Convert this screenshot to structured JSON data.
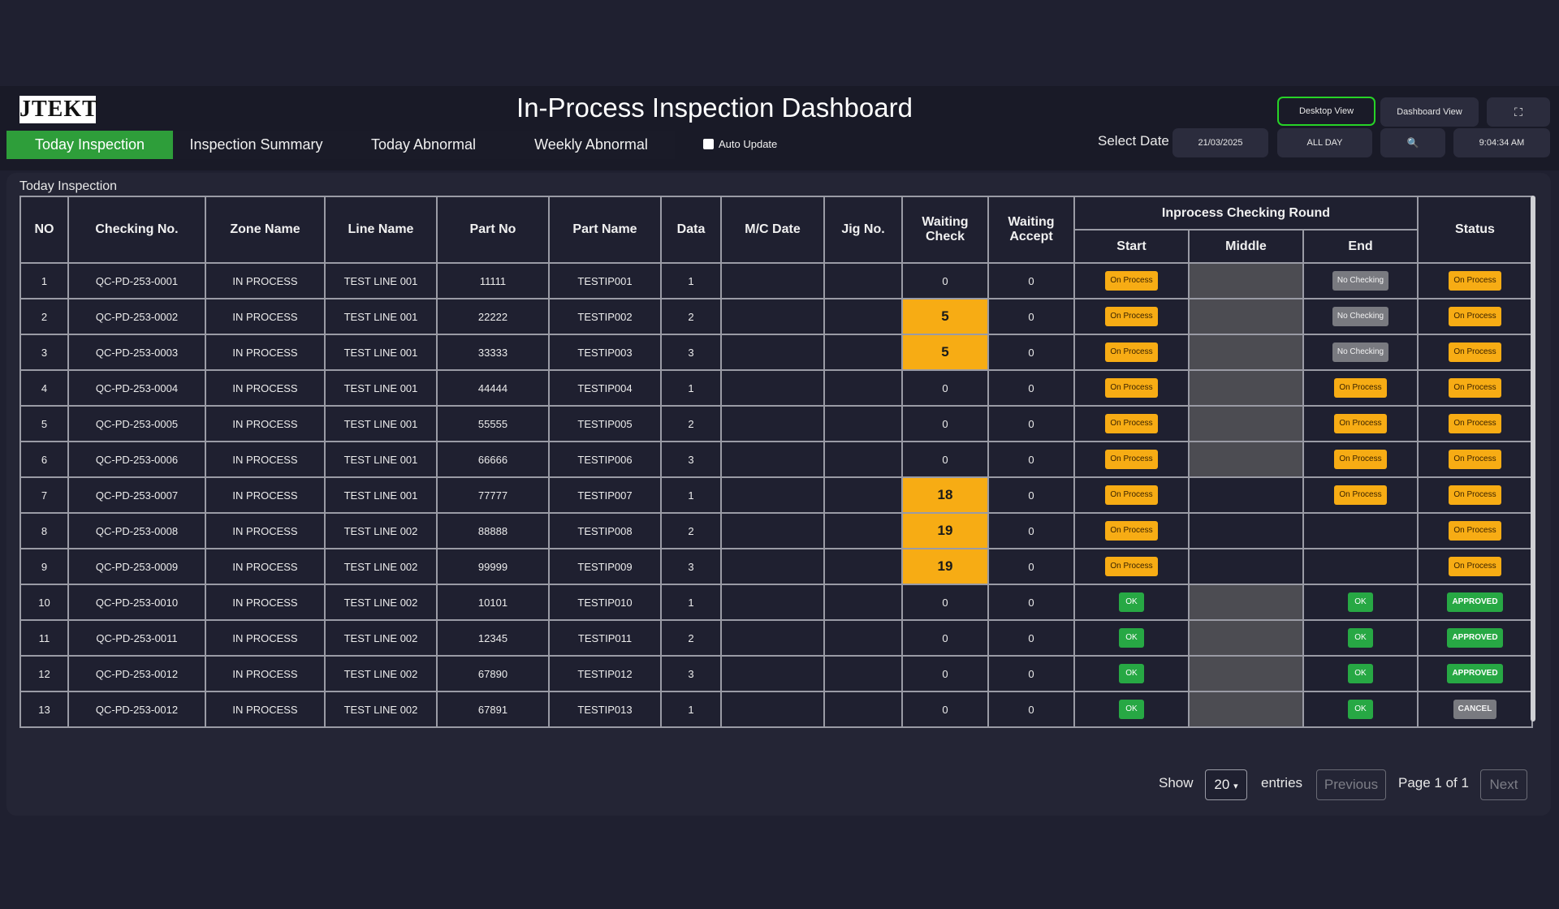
{
  "header": {
    "logo_text": "JTEKT",
    "title": "In-Process Inspection Dashboard",
    "desktop_view_label": "Desktop View",
    "dashboard_view_label": "Dashboard View",
    "fullscreen_icon": "⛶",
    "select_date_label": "Select Date",
    "date_value": "21/03/2025",
    "period_value": "ALL DAY",
    "search_icon": "🔍",
    "time_value": "9:04:34 AM",
    "auto_update_label": "Auto Update"
  },
  "tabs": [
    {
      "label": "Today Inspection"
    },
    {
      "label": "Inspection Summary"
    },
    {
      "label": "Today Abnormal"
    },
    {
      "label": "Weekly Abnormal"
    }
  ],
  "panel": {
    "title": "Today Inspection"
  },
  "table": {
    "headers": {
      "no": "NO",
      "checking_no": "Checking No.",
      "zone_name": "Zone Name",
      "line_name": "Line Name",
      "part_no": "Part No",
      "part_name": "Part Name",
      "data": "Data",
      "mc_date": "M/C Date",
      "jig_no": "Jig No.",
      "waiting_check": "Waiting Check",
      "waiting_accept": "Waiting Accept",
      "round_group": "Inprocess Checking Round",
      "start": "Start",
      "middle": "Middle",
      "end": "End",
      "status": "Status"
    },
    "rows": [
      {
        "no": "1",
        "checking_no": "QC-PD-253-0001",
        "zone": "IN PROCESS",
        "line": "TEST LINE 001",
        "part_no": "11111",
        "part_name": "TESTIP001",
        "data": "1",
        "wait_check": "0",
        "wait_accept": "0",
        "start": "On Process",
        "end": "No Checking",
        "status": "On Process"
      },
      {
        "no": "2",
        "checking_no": "QC-PD-253-0002",
        "zone": "IN PROCESS",
        "line": "TEST LINE 001",
        "part_no": "22222",
        "part_name": "TESTIP002",
        "data": "2",
        "wait_check": "5",
        "wait_accept": "0",
        "start": "On Process",
        "end": "No Checking",
        "status": "On Process"
      },
      {
        "no": "3",
        "checking_no": "QC-PD-253-0003",
        "zone": "IN PROCESS",
        "line": "TEST LINE 001",
        "part_no": "33333",
        "part_name": "TESTIP003",
        "data": "3",
        "wait_check": "5",
        "wait_accept": "0",
        "start": "On Process",
        "end": "No Checking",
        "status": "On Process"
      },
      {
        "no": "4",
        "checking_no": "QC-PD-253-0004",
        "zone": "IN PROCESS",
        "line": "TEST LINE 001",
        "part_no": "44444",
        "part_name": "TESTIP004",
        "data": "1",
        "wait_check": "0",
        "wait_accept": "0",
        "start": "On Process",
        "end": "On Process",
        "status": "On Process"
      },
      {
        "no": "5",
        "checking_no": "QC-PD-253-0005",
        "zone": "IN PROCESS",
        "line": "TEST LINE 001",
        "part_no": "55555",
        "part_name": "TESTIP005",
        "data": "2",
        "wait_check": "0",
        "wait_accept": "0",
        "start": "On Process",
        "end": "On Process",
        "status": "On Process"
      },
      {
        "no": "6",
        "checking_no": "QC-PD-253-0006",
        "zone": "IN PROCESS",
        "line": "TEST LINE 001",
        "part_no": "66666",
        "part_name": "TESTIP006",
        "data": "3",
        "wait_check": "0",
        "wait_accept": "0",
        "start": "On Process",
        "end": "On Process",
        "status": "On Process"
      },
      {
        "no": "7",
        "checking_no": "QC-PD-253-0007",
        "zone": "IN PROCESS",
        "line": "TEST LINE 001",
        "part_no": "77777",
        "part_name": "TESTIP007",
        "data": "1",
        "wait_check": "18",
        "wait_accept": "0",
        "start": "On Process",
        "end": "On Process",
        "status": "On Process"
      },
      {
        "no": "8",
        "checking_no": "QC-PD-253-0008",
        "zone": "IN PROCESS",
        "line": "TEST LINE 002",
        "part_no": "88888",
        "part_name": "TESTIP008",
        "data": "2",
        "wait_check": "19",
        "wait_accept": "0",
        "start": "On Process",
        "end": "",
        "status": "On Process"
      },
      {
        "no": "9",
        "checking_no": "QC-PD-253-0009",
        "zone": "IN PROCESS",
        "line": "TEST LINE 002",
        "part_no": "99999",
        "part_name": "TESTIP009",
        "data": "3",
        "wait_check": "19",
        "wait_accept": "0",
        "start": "On Process",
        "end": "",
        "status": "On Process"
      },
      {
        "no": "10",
        "checking_no": "QC-PD-253-0010",
        "zone": "IN PROCESS",
        "line": "TEST LINE 002",
        "part_no": "10101",
        "part_name": "TESTIP010",
        "data": "1",
        "wait_check": "0",
        "wait_accept": "0",
        "start": "OK",
        "end": "OK",
        "status": "APPROVED"
      },
      {
        "no": "11",
        "checking_no": "QC-PD-253-0011",
        "zone": "IN PROCESS",
        "line": "TEST LINE 002",
        "part_no": "12345",
        "part_name": "TESTIP011",
        "data": "2",
        "wait_check": "0",
        "wait_accept": "0",
        "start": "OK",
        "end": "OK",
        "status": "APPROVED"
      },
      {
        "no": "12",
        "checking_no": "QC-PD-253-0012",
        "zone": "IN PROCESS",
        "line": "TEST LINE 002",
        "part_no": "67890",
        "part_name": "TESTIP012",
        "data": "3",
        "wait_check": "0",
        "wait_accept": "0",
        "start": "OK",
        "end": "OK",
        "status": "APPROVED"
      },
      {
        "no": "13",
        "checking_no": "QC-PD-253-0012",
        "zone": "IN PROCESS",
        "line": "TEST LINE 002",
        "part_no": "67891",
        "part_name": "TESTIP013",
        "data": "1",
        "wait_check": "0",
        "wait_accept": "0",
        "start": "OK",
        "end": "OK",
        "status": "CANCEL"
      }
    ]
  },
  "pagination": {
    "show_label": "Show",
    "entries_value": "20",
    "entries_label": "entries",
    "previous_label": "Previous",
    "page_info": "Page 1 of 1",
    "next_label": "Next"
  },
  "colors": {
    "accent_green": "#2e9e3a",
    "highlight_orange": "#f7ac14",
    "ok_green": "#27a844",
    "neutral_gray": "#797a80"
  }
}
